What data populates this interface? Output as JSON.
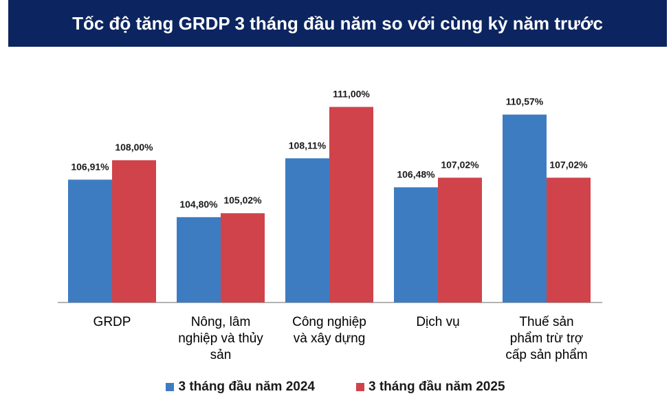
{
  "chart_data": {
    "type": "bar",
    "title": "Tốc độ tăng GRDP 3 tháng đầu năm so với cùng kỳ năm trước",
    "categories": [
      [
        "GRDP"
      ],
      [
        "Nông, lâm",
        "nghiệp và thủy",
        "sản"
      ],
      [
        "Công nghiệp",
        "và xây dựng"
      ],
      [
        "Dịch vụ"
      ],
      [
        "Thuế sản",
        "phẩm trừ trợ",
        "cấp sản phẩm"
      ]
    ],
    "series": [
      {
        "name": "3 tháng đầu năm  2024",
        "color": "#3e7cc2",
        "values": [
          106.91,
          104.8,
          108.11,
          106.48,
          110.57
        ],
        "labels": [
          "106,91%",
          "104,80%",
          "108,11%",
          "106,48%",
          "110,57%"
        ]
      },
      {
        "name": "3 tháng đầu năm  2025",
        "color": "#d0434b",
        "values": [
          108.0,
          105.02,
          111.0,
          107.02,
          107.02
        ],
        "labels": [
          "108,00%",
          "105,02%",
          "111,00%",
          "107,02%",
          "107,02%"
        ]
      }
    ],
    "ylim": [
      100,
      111.6
    ],
    "xlabel": "",
    "ylabel": "",
    "grid": false,
    "legend": "bottom"
  }
}
